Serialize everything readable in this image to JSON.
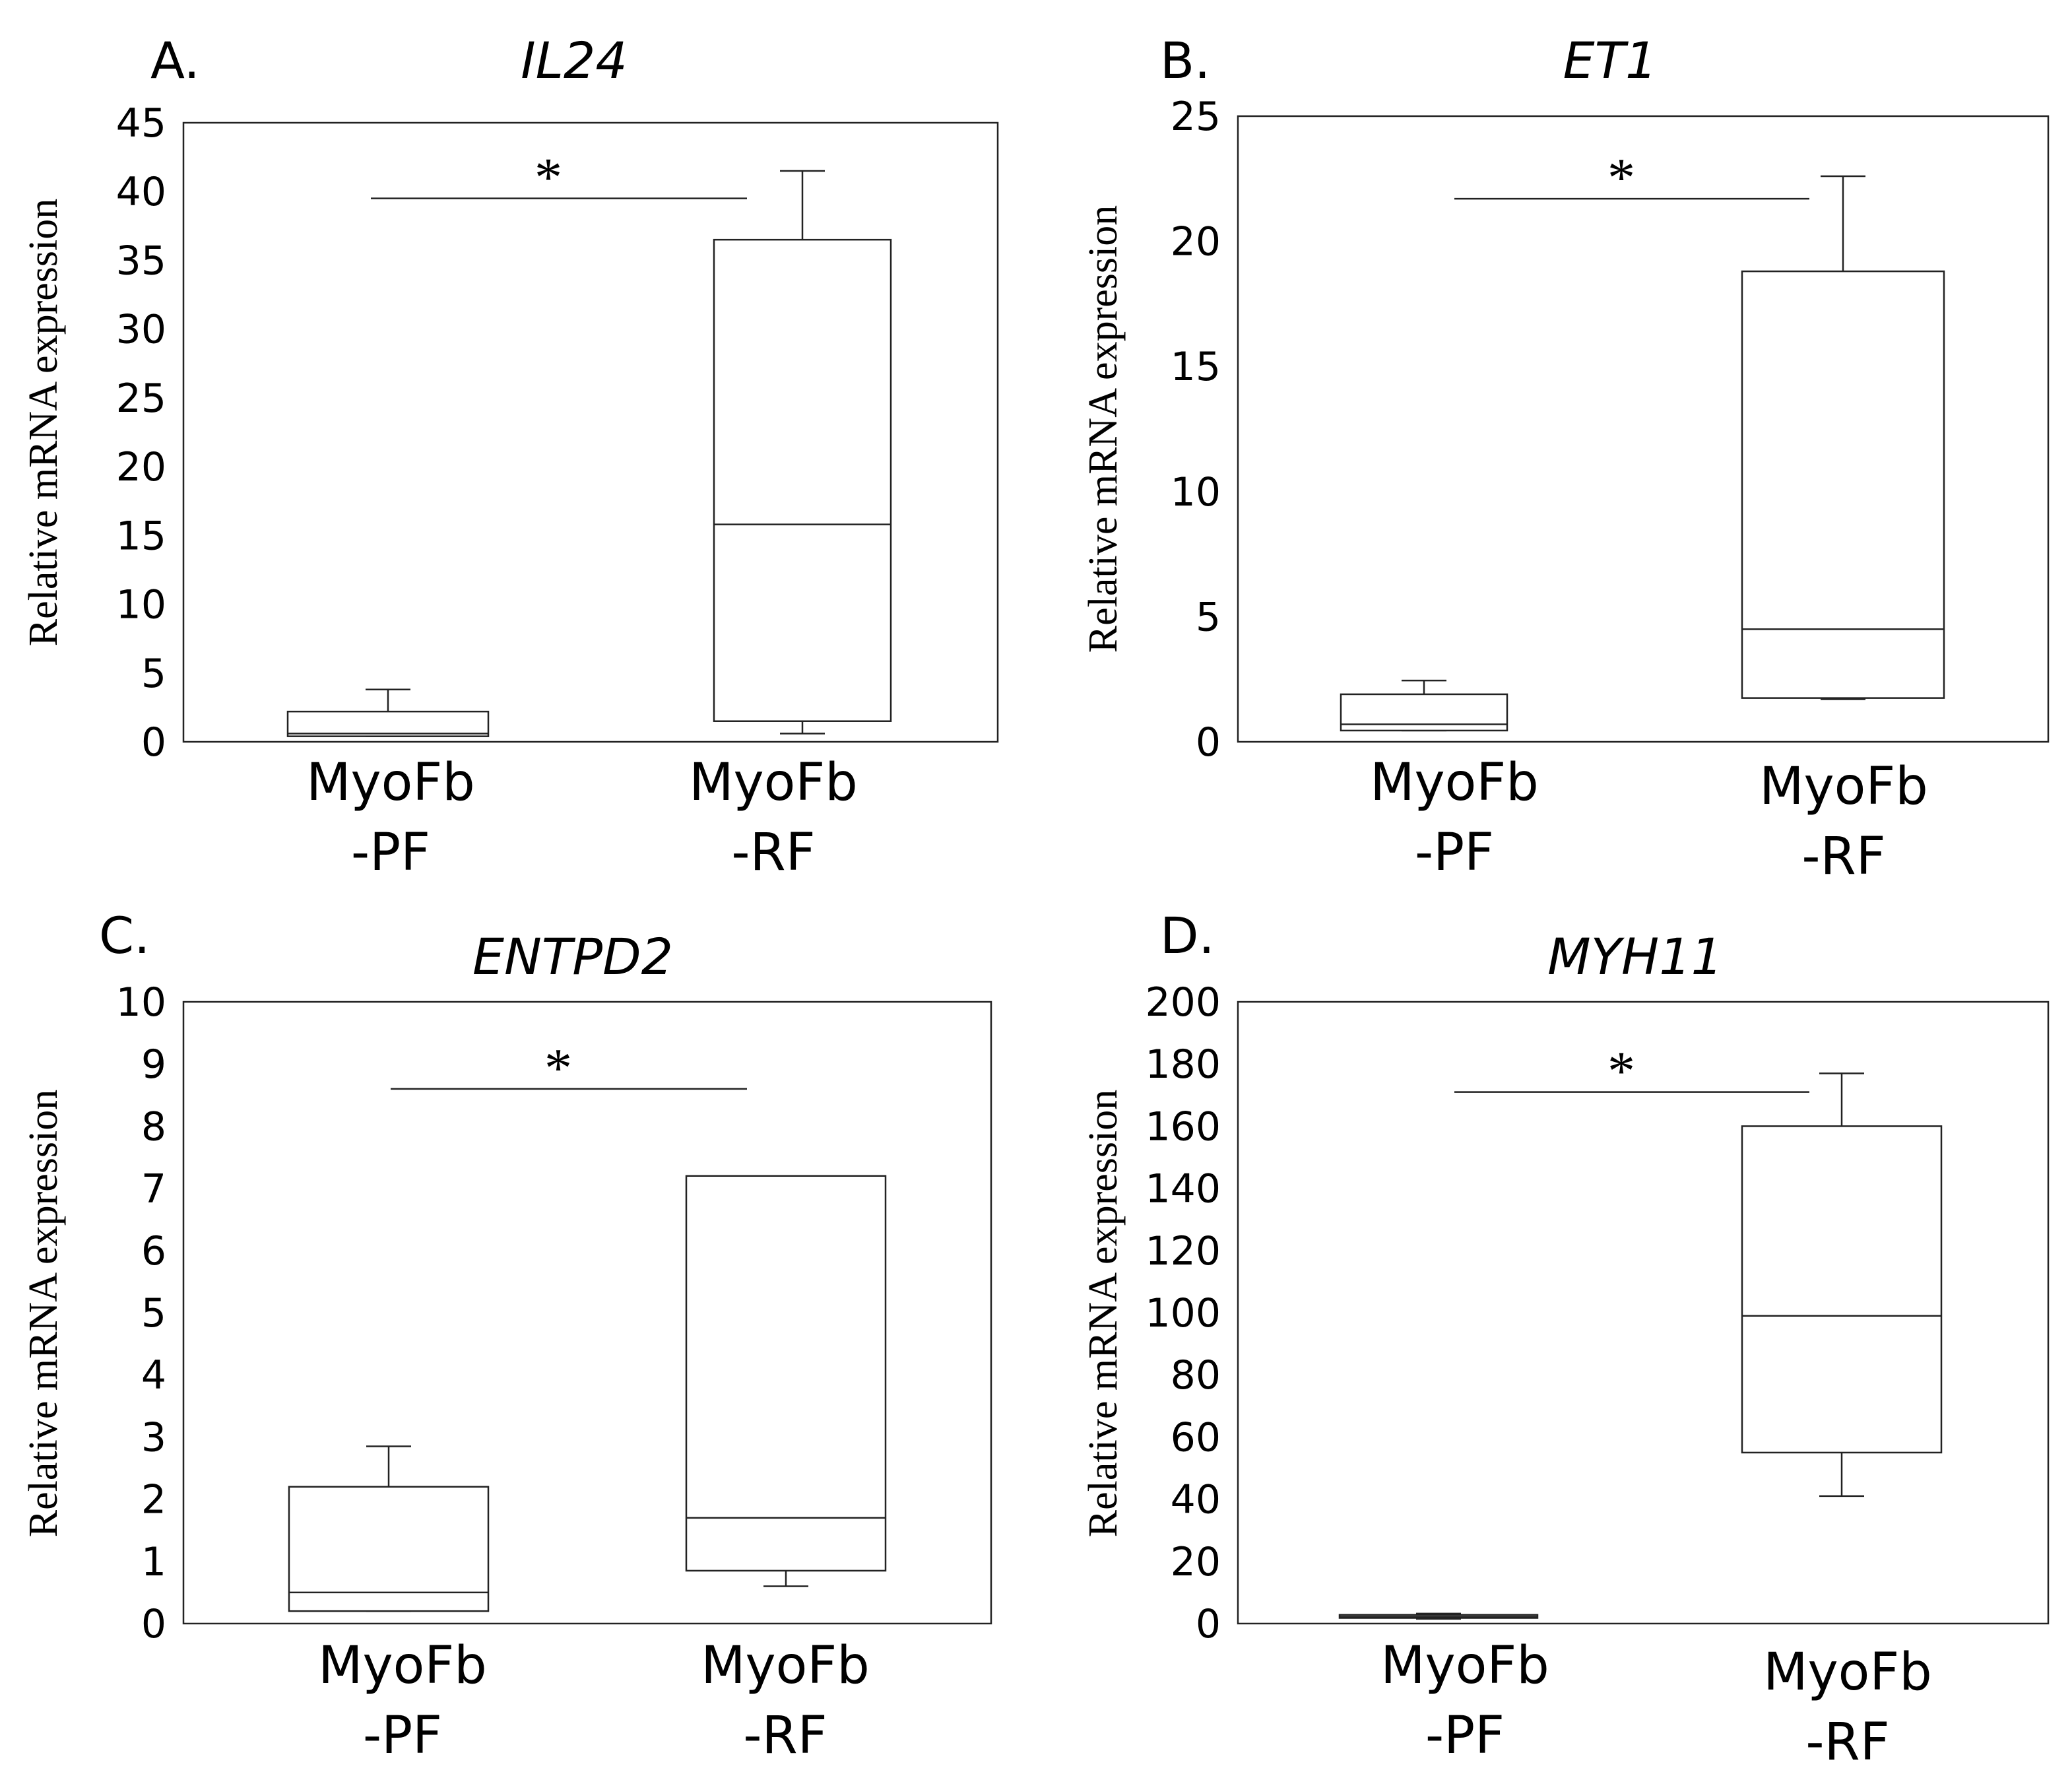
{
  "figure": {
    "ylabel": "Relative mRNA expression"
  },
  "chart_data": [
    {
      "type": "box",
      "panel_label": "A.",
      "title": "IL24",
      "ylabel": "Relative mRNA expression",
      "ylim": [
        0,
        45
      ],
      "yticks": [
        0,
        5,
        10,
        15,
        20,
        25,
        30,
        35,
        40,
        45
      ],
      "categories": [
        {
          "line1": "MyoFb",
          "line2": "-PF"
        },
        {
          "line1": "MyoFb",
          "line2": "-RF"
        }
      ],
      "boxes": [
        {
          "whisker_low": 0.4,
          "q1": 0.4,
          "median": 0.6,
          "q3": 2.2,
          "whisker_high": 3.8
        },
        {
          "whisker_low": 0.6,
          "q1": 1.5,
          "median": 15.8,
          "q3": 36.5,
          "whisker_high": 41.5
        }
      ],
      "significance": {
        "symbol": "*",
        "y": 39.5
      }
    },
    {
      "type": "box",
      "panel_label": "B.",
      "title": "ET1",
      "ylabel": "Relative mRNA expression",
      "ylim": [
        0,
        25
      ],
      "yticks": [
        0,
        5,
        10,
        15,
        20,
        25
      ],
      "categories": [
        {
          "line1": "MyoFb",
          "line2": "-PF"
        },
        {
          "line1": "MyoFb",
          "line2": "-RF"
        }
      ],
      "boxes": [
        {
          "whisker_low": 0.45,
          "q1": 0.45,
          "median": 0.7,
          "q3": 1.9,
          "whisker_high": 2.45
        },
        {
          "whisker_low": 1.7,
          "q1": 1.75,
          "median": 4.5,
          "q3": 18.8,
          "whisker_high": 22.6
        }
      ],
      "significance": {
        "symbol": "*",
        "y": 21.7
      }
    },
    {
      "type": "box",
      "panel_label": "C.",
      "title": "ENTPD2",
      "ylabel": "Relative mRNA expression",
      "ylim": [
        0,
        10
      ],
      "yticks": [
        0,
        1,
        2,
        3,
        4,
        5,
        6,
        7,
        8,
        9,
        10
      ],
      "categories": [
        {
          "line1": "MyoFb",
          "line2": "-PF"
        },
        {
          "line1": "MyoFb",
          "line2": "-RF"
        }
      ],
      "boxes": [
        {
          "whisker_low": 0.2,
          "q1": 0.2,
          "median": 0.5,
          "q3": 2.2,
          "whisker_high": 2.85
        },
        {
          "whisker_low": 0.6,
          "q1": 0.85,
          "median": 1.7,
          "q3": 7.2,
          "whisker_high": 7.2
        }
      ],
      "significance": {
        "symbol": "*",
        "y": 8.6
      }
    },
    {
      "type": "box",
      "panel_label": "D.",
      "title": "MYH11",
      "ylabel": "Relative mRNA expression",
      "ylim": [
        0,
        200
      ],
      "yticks": [
        0,
        20,
        40,
        60,
        80,
        100,
        120,
        140,
        160,
        180,
        200
      ],
      "categories": [
        {
          "line1": "MyoFb",
          "line2": "-PF"
        },
        {
          "line1": "MyoFb",
          "line2": "-RF"
        }
      ],
      "boxes": [
        {
          "whisker_low": 1.5,
          "q1": 1.8,
          "median": 2.2,
          "q3": 2.8,
          "whisker_high": 3.2
        },
        {
          "whisker_low": 41,
          "q1": 55,
          "median": 99,
          "q3": 160,
          "whisker_high": 177
        }
      ],
      "significance": {
        "symbol": "*",
        "y": 171
      }
    }
  ]
}
